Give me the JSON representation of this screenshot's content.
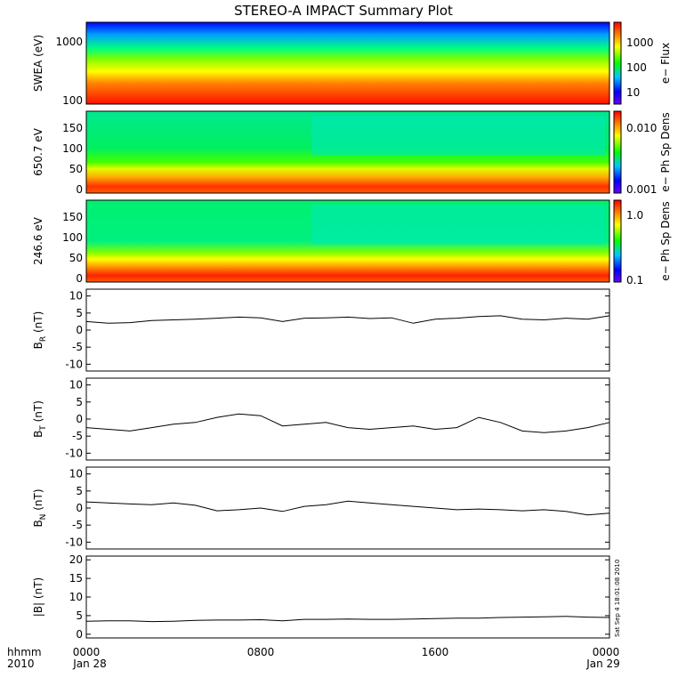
{
  "title": "STEREO-A IMPACT Summary Plot",
  "footer": {
    "left_line1": "hhmm",
    "left_line2": "2010",
    "ticks": [
      {
        "hhmm": "0000",
        "date": "Jan 28"
      },
      {
        "hhmm": "0800",
        "date": ""
      },
      {
        "hhmm": "1600",
        "date": ""
      },
      {
        "hhmm": "0000",
        "date": "Jan 29"
      }
    ]
  },
  "stamp": "Sat Sep  4 18:01:08 2010",
  "chart_data": [
    {
      "type": "heatmap",
      "ylabel": "SWEA (eV)",
      "ylog": true,
      "yticks": [
        "1000",
        "100"
      ],
      "colorbar_label": "e− Flux",
      "colorbar_ticks": [
        "1000",
        "100",
        "10"
      ],
      "description_colors": {
        "high": "#ff0000",
        "mid": "#00ff00",
        "low": "#0000ff"
      }
    },
    {
      "type": "heatmap",
      "ylabel": "650.7 eV",
      "ylim": [
        0,
        180
      ],
      "yticks": [
        "150",
        "100",
        "50",
        "0"
      ],
      "colorbar_label": "e− Ph Sp Dens",
      "colorbar_ticks": [
        "0.010",
        "0.001"
      ]
    },
    {
      "type": "heatmap",
      "ylabel": "246.6 eV",
      "ylim": [
        0,
        180
      ],
      "yticks": [
        "150",
        "100",
        "50",
        "0"
      ],
      "colorbar_label": "e− Ph Sp Dens",
      "colorbar_ticks": [
        "1.0",
        "0.1"
      ]
    },
    {
      "type": "line",
      "ylabel_main": "B",
      "ylabel_sub": "R",
      "ylabel_unit": " (nT)",
      "ylim": [
        -12,
        12
      ],
      "yticks": [
        "10",
        "5",
        "0",
        "-5",
        "-10"
      ],
      "x_hours": [
        0,
        1,
        2,
        3,
        4,
        5,
        6,
        7,
        8,
        9,
        10,
        11,
        12,
        13,
        14,
        15,
        16,
        17,
        18,
        19,
        20,
        21,
        22,
        23,
        24
      ],
      "values": [
        2.5,
        2.0,
        2.2,
        2.8,
        3.0,
        3.2,
        3.5,
        3.8,
        3.6,
        2.5,
        3.5,
        3.6,
        3.8,
        3.4,
        3.6,
        2.0,
        3.2,
        3.5,
        4.0,
        4.2,
        3.2,
        3.0,
        3.5,
        3.2,
        4.2
      ]
    },
    {
      "type": "line",
      "ylabel_main": "B",
      "ylabel_sub": "T",
      "ylabel_unit": " (nT)",
      "ylim": [
        -12,
        12
      ],
      "yticks": [
        "10",
        "5",
        "0",
        "-5",
        "-10"
      ],
      "x_hours": [
        0,
        1,
        2,
        3,
        4,
        5,
        6,
        7,
        8,
        9,
        10,
        11,
        12,
        13,
        14,
        15,
        16,
        17,
        18,
        19,
        20,
        21,
        22,
        23,
        24
      ],
      "values": [
        -2.5,
        -3.0,
        -3.5,
        -2.5,
        -1.5,
        -1.0,
        0.5,
        1.5,
        1.0,
        -2.0,
        -1.5,
        -1.0,
        -2.5,
        -3.0,
        -2.5,
        -2.0,
        -3.0,
        -2.5,
        0.5,
        -1.0,
        -3.5,
        -4.0,
        -3.5,
        -2.5,
        -1.0
      ]
    },
    {
      "type": "line",
      "ylabel_main": "B",
      "ylabel_sub": "N",
      "ylabel_unit": " (nT)",
      "ylim": [
        -12,
        12
      ],
      "yticks": [
        "10",
        "5",
        "0",
        "-5",
        "-10"
      ],
      "x_hours": [
        0,
        1,
        2,
        3,
        4,
        5,
        6,
        7,
        8,
        9,
        10,
        11,
        12,
        13,
        14,
        15,
        16,
        17,
        18,
        19,
        20,
        21,
        22,
        23,
        24
      ],
      "values": [
        1.8,
        1.5,
        1.2,
        1.0,
        1.5,
        0.8,
        -0.8,
        -0.5,
        0.0,
        -1.0,
        0.5,
        1.0,
        2.0,
        1.5,
        1.0,
        0.5,
        0.0,
        -0.5,
        -0.3,
        -0.5,
        -0.8,
        -0.5,
        -1.0,
        -2.0,
        -1.5
      ]
    },
    {
      "type": "line",
      "ylabel": "|B| (nT)",
      "ylim": [
        -1,
        21
      ],
      "yticks": [
        "20",
        "15",
        "10",
        "5",
        "0"
      ],
      "x_hours": [
        0,
        1,
        2,
        3,
        4,
        5,
        6,
        7,
        8,
        9,
        10,
        11,
        12,
        13,
        14,
        15,
        16,
        17,
        18,
        19,
        20,
        21,
        22,
        23,
        24
      ],
      "values": [
        3.5,
        3.6,
        3.6,
        3.4,
        3.5,
        3.7,
        3.8,
        3.8,
        3.9,
        3.6,
        4.0,
        4.0,
        4.1,
        4.0,
        4.0,
        4.1,
        4.2,
        4.3,
        4.3,
        4.5,
        4.6,
        4.7,
        4.8,
        4.6,
        4.5
      ]
    }
  ]
}
